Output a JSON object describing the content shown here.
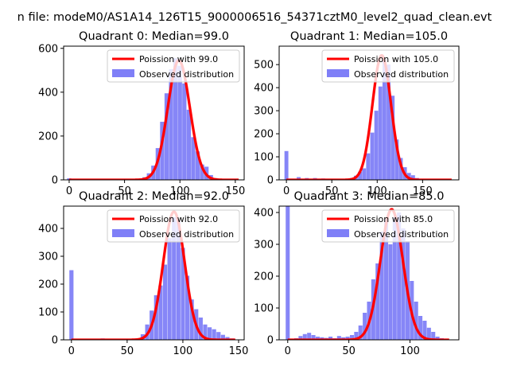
{
  "suptitle": "n file: modeM0/AS1A14_126T15_9000006516_54371cztM0_level2_quad_clean.evt",
  "colors": {
    "poisson": "#ff0000",
    "histogram": "#7f7ff7"
  },
  "chart_data": [
    {
      "type": "histogram+line",
      "title": "Quadrant 0: Median=99.0",
      "median": 99.0,
      "xlim": [
        -5,
        158
      ],
      "ylim": [
        0,
        610
      ],
      "xticks": [
        0,
        50,
        100,
        150
      ],
      "yticks": [
        0,
        200,
        400,
        600
      ],
      "bin_width": 3.8,
      "legend": {
        "line": "Poission with 99.0",
        "bars": "Observed distribution",
        "position": "upper-right"
      },
      "hist_x": [
        0,
        4,
        8,
        12,
        16,
        20,
        24,
        28,
        32,
        36,
        40,
        44,
        48,
        52,
        56,
        60,
        64,
        68,
        72,
        76,
        80,
        84,
        88,
        92,
        96,
        100,
        104,
        108,
        112,
        116,
        120,
        124,
        128,
        132,
        136,
        140,
        144,
        148,
        152
      ],
      "hist_y": [
        7,
        0,
        0,
        0,
        0,
        0,
        0,
        0,
        0,
        0,
        0,
        0,
        0,
        0,
        2,
        3,
        6,
        12,
        30,
        65,
        145,
        265,
        395,
        505,
        555,
        520,
        440,
        320,
        195,
        130,
        70,
        60,
        22,
        8,
        4,
        2,
        1,
        0,
        0
      ],
      "curve_peak": 545,
      "curve_range": [
        0,
        153
      ]
    },
    {
      "type": "histogram+line",
      "title": "Quadrant 1: Median=105.0",
      "median": 105.0,
      "xlim": [
        -8,
        190
      ],
      "ylim": [
        0,
        580
      ],
      "xticks": [
        0,
        50,
        100,
        150
      ],
      "yticks": [
        0,
        100,
        200,
        300,
        400,
        500
      ],
      "bin_width": 4.3,
      "legend": {
        "line": "Poission with 105.0",
        "bars": "Observed distribution",
        "position": "upper-right"
      },
      "hist_x": [
        0,
        4.5,
        9,
        13.5,
        18,
        22.5,
        27,
        31.5,
        36,
        40.5,
        45,
        49.5,
        54,
        58.5,
        63,
        67.5,
        72,
        76.5,
        81,
        85.5,
        90,
        94.5,
        99,
        103.5,
        108,
        112.5,
        117,
        121.5,
        126,
        130.5,
        135,
        139.5,
        144,
        148.5,
        153,
        157.5,
        162,
        166.5,
        171,
        175.5,
        180
      ],
      "hist_y": [
        125,
        0,
        0,
        12,
        0,
        8,
        5,
        8,
        4,
        6,
        3,
        5,
        2,
        4,
        2,
        4,
        8,
        18,
        35,
        50,
        115,
        205,
        300,
        405,
        520,
        500,
        365,
        175,
        95,
        55,
        30,
        20,
        8,
        5,
        3,
        2,
        1,
        0,
        0,
        0,
        0
      ],
      "curve_peak": 540,
      "curve_range": [
        0,
        182
      ]
    },
    {
      "type": "histogram+line",
      "title": "Quadrant 2: Median=92.0",
      "median": 92.0,
      "xlim": [
        -7,
        155
      ],
      "ylim": [
        0,
        480
      ],
      "xticks": [
        0,
        50,
        100,
        150
      ],
      "yticks": [
        0,
        100,
        200,
        300,
        400
      ],
      "bin_width": 3.7,
      "legend": {
        "line": "Poission with 92.0",
        "bars": "Observed distribution",
        "position": "upper-right"
      },
      "hist_x": [
        0,
        4,
        8,
        12,
        16,
        20,
        24,
        28,
        32,
        36,
        40,
        44,
        48,
        52,
        56,
        60,
        64,
        68,
        72,
        76,
        80,
        84,
        88,
        92,
        96,
        100,
        104,
        108,
        112,
        116,
        120,
        124,
        128,
        132,
        136,
        140,
        144
      ],
      "hist_y": [
        250,
        0,
        0,
        0,
        0,
        0,
        0,
        5,
        0,
        0,
        0,
        0,
        0,
        0,
        2,
        5,
        20,
        55,
        105,
        160,
        195,
        270,
        365,
        440,
        425,
        330,
        230,
        145,
        110,
        80,
        55,
        45,
        38,
        28,
        18,
        10,
        5
      ],
      "curve_peak": 460,
      "curve_range": [
        0,
        147
      ]
    },
    {
      "type": "histogram+line",
      "title": "Quadrant 3: Median=85.0",
      "median": 85.0,
      "xlim": [
        -7,
        140
      ],
      "ylim": [
        0,
        420
      ],
      "xticks": [
        0,
        50,
        100
      ],
      "yticks": [
        0,
        100,
        200,
        300,
        400
      ],
      "bin_width": 3.3,
      "legend": {
        "line": "Poission with 85.0",
        "bars": "Observed distribution",
        "position": "upper-right"
      },
      "hist_x": [
        0,
        3.5,
        7,
        10.5,
        14,
        17.5,
        21,
        24.5,
        28,
        31.5,
        35,
        38.5,
        42,
        45.5,
        49,
        52.5,
        56,
        59.5,
        63,
        66.5,
        70,
        73.5,
        77,
        80.5,
        84,
        87.5,
        91,
        94.5,
        98,
        101.5,
        105,
        108.5,
        112,
        115.5,
        119,
        122.5,
        126,
        129.5
      ],
      "hist_y": [
        420,
        0,
        5,
        12,
        18,
        22,
        15,
        10,
        8,
        6,
        10,
        5,
        12,
        8,
        10,
        15,
        25,
        45,
        85,
        120,
        190,
        240,
        340,
        380,
        300,
        385,
        400,
        350,
        310,
        185,
        120,
        75,
        60,
        38,
        25,
        10,
        5,
        2
      ],
      "curve_peak": 410,
      "curve_range": [
        0,
        132
      ]
    }
  ]
}
